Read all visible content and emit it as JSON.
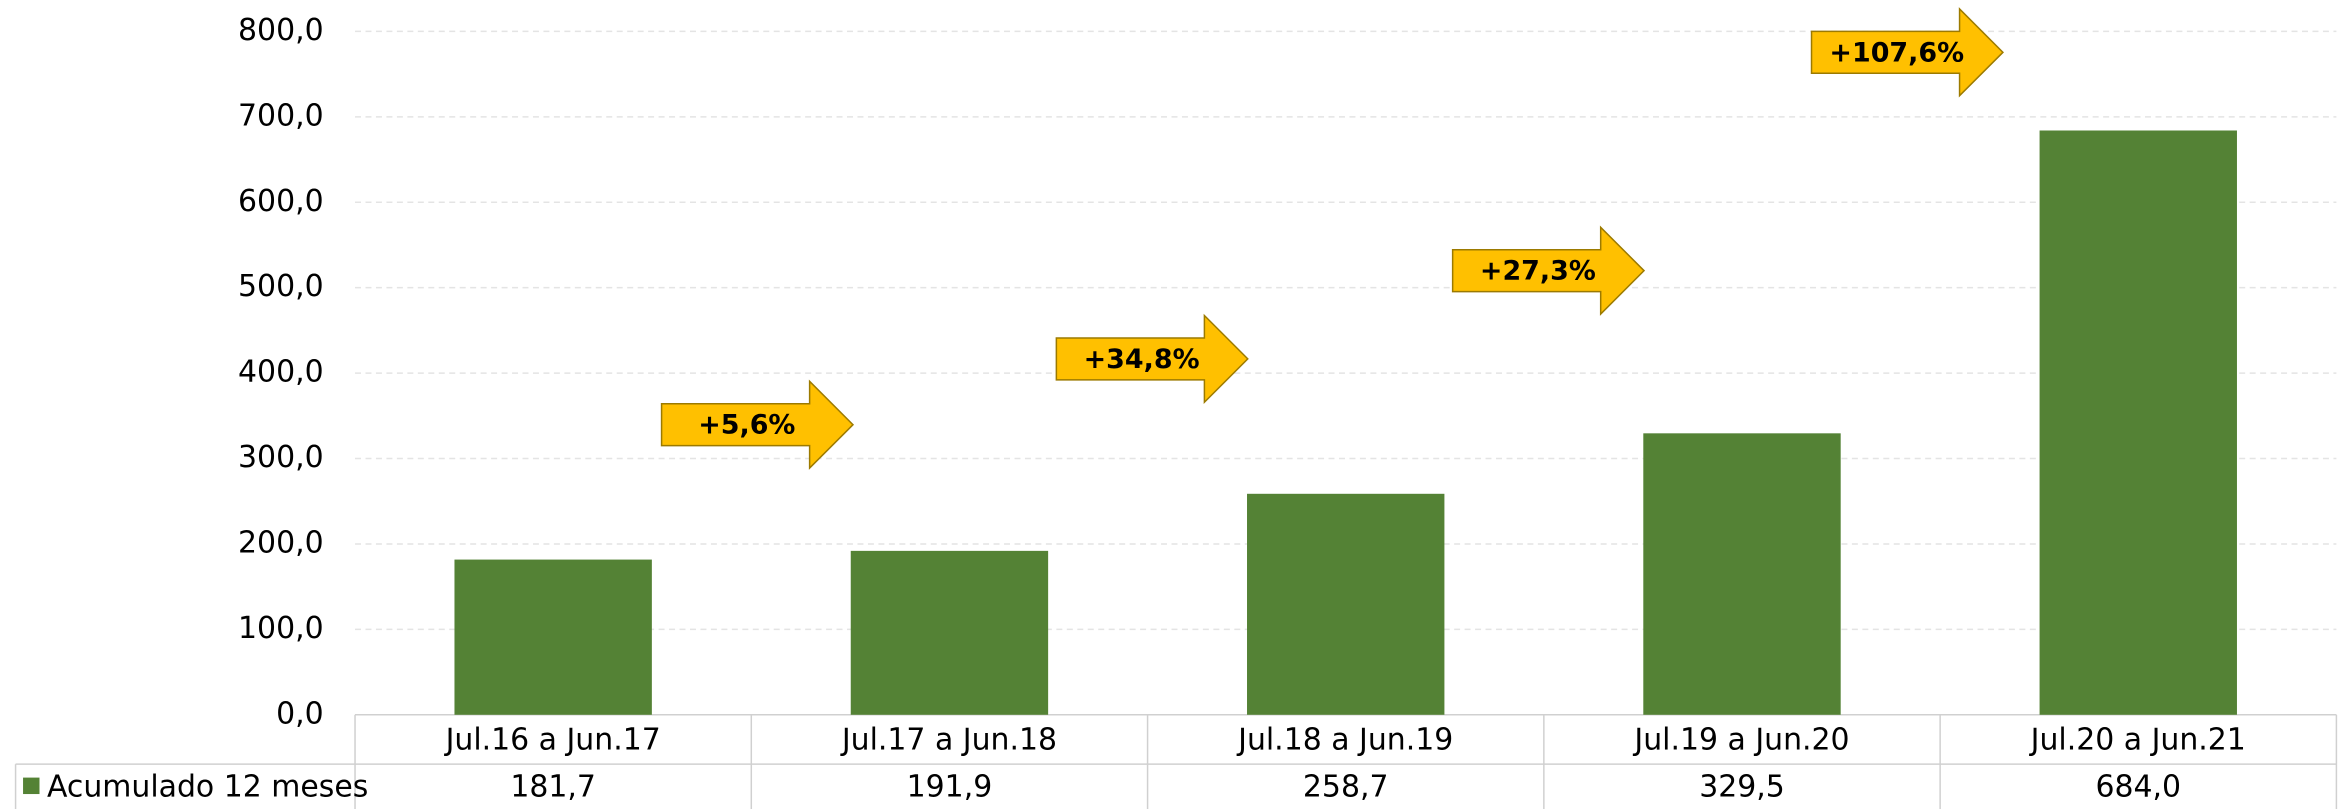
{
  "chart_data": {
    "type": "bar",
    "categories": [
      "Jul.16 a Jun.17",
      "Jul.17 a Jun.18",
      "Jul.18 a Jun.19",
      "Jul.19 a Jun.20",
      "Jul.20 a Jun.21"
    ],
    "series": [
      {
        "name": "Acumulado 12 meses",
        "color": "#548235",
        "values": [
          181.7,
          191.9,
          258.7,
          329.5,
          684.0
        ],
        "value_labels": [
          "181,7",
          "191,9",
          "258,7",
          "329,5",
          "684,0"
        ]
      }
    ],
    "ylim": [
      0,
      800
    ],
    "yticks": [
      {
        "value": 0,
        "label": "0,0"
      },
      {
        "value": 100,
        "label": "100,0"
      },
      {
        "value": 200,
        "label": "200,0"
      },
      {
        "value": 300,
        "label": "300,0"
      },
      {
        "value": 400,
        "label": "400,0"
      },
      {
        "value": 500,
        "label": "500,0"
      },
      {
        "value": 600,
        "label": "600,0"
      },
      {
        "value": 700,
        "label": "700,0"
      },
      {
        "value": 800,
        "label": "800,0"
      }
    ],
    "grid": true,
    "annotations": [
      "+5,6%",
      "+34,8%",
      "+27,3%",
      "+107,6%"
    ],
    "annotation_color": "#ffc000"
  }
}
